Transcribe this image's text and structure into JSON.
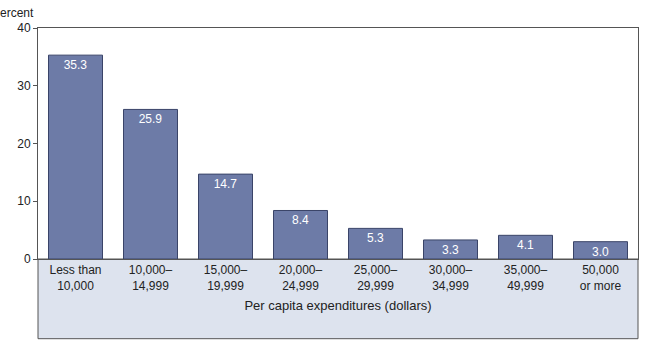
{
  "chart_data": {
    "type": "bar",
    "y_label": "Percent",
    "x_label": "Per capita expenditures (dollars)",
    "categories": [
      "Less than 10,000",
      "10,000–14,999",
      "15,000–19,999",
      "20,000–24,999",
      "25,000–29,999",
      "30,000–34,999",
      "35,000–49,999",
      "50,000 or more"
    ],
    "values": [
      35.3,
      25.9,
      14.7,
      8.4,
      5.3,
      3.3,
      4.1,
      3.0
    ],
    "value_labels": [
      "35.3",
      "25.9",
      "14.7",
      "8.4",
      "5.3",
      "3.3",
      "4.1",
      "3.0"
    ],
    "color": "#6d7ba7",
    "ylim": [
      0,
      40
    ],
    "yticks": [
      0,
      10,
      20,
      30,
      40
    ],
    "grid": false,
    "data_labels": true
  }
}
